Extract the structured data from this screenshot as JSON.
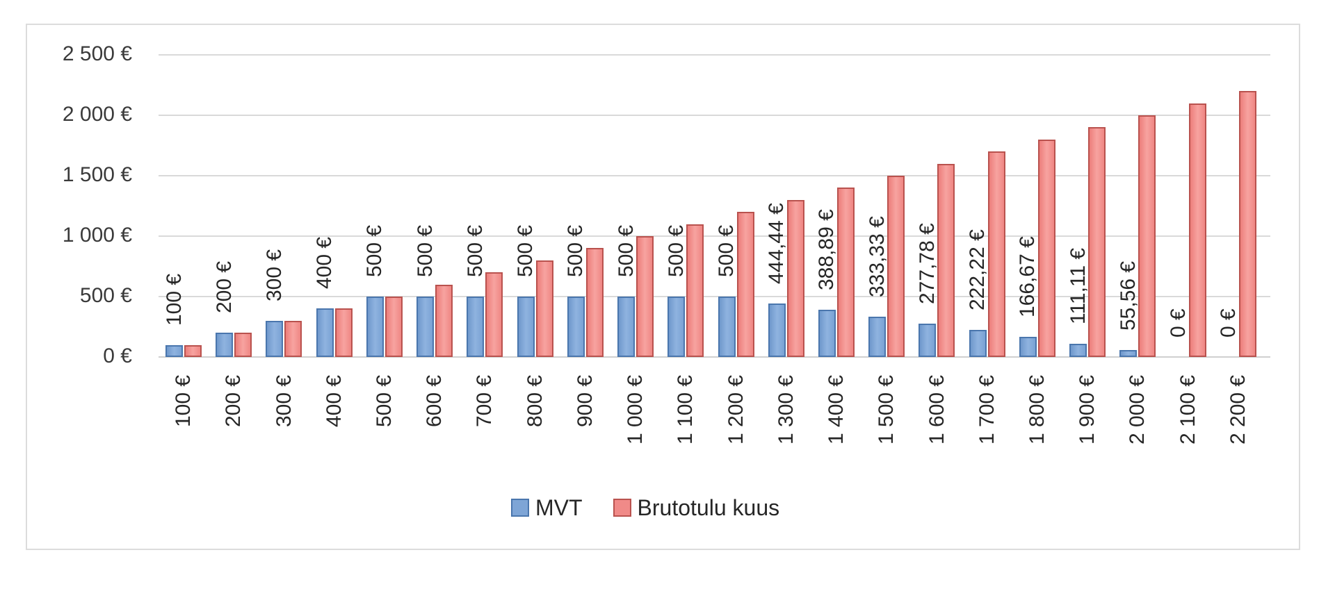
{
  "chart_data": {
    "type": "bar",
    "title": "",
    "xlabel": "",
    "ylabel": "",
    "ylim": [
      0,
      2500
    ],
    "y_ticks": [
      "0 €",
      "500 €",
      "1 000 €",
      "1 500 €",
      "2 000 €",
      "2 500 €"
    ],
    "y_tick_values": [
      0,
      500,
      1000,
      1500,
      2000,
      2500
    ],
    "grid": true,
    "legend_position": "bottom",
    "categories": [
      "100 €",
      "200 €",
      "300 €",
      "400 €",
      "500 €",
      "600 €",
      "700 €",
      "800 €",
      "900 €",
      "1 000 €",
      "1 100 €",
      "1 200 €",
      "1 300 €",
      "1 400 €",
      "1 500 €",
      "1 600 €",
      "1 700 €",
      "1 800 €",
      "1 900 €",
      "2 000 €",
      "2 100 €",
      "2 200 €"
    ],
    "series": [
      {
        "name": "MVT",
        "color": "#7ea5d6",
        "values": [
          100,
          200,
          300,
          400,
          500,
          500,
          500,
          500,
          500,
          500,
          500,
          500,
          444.44,
          388.89,
          333.33,
          277.78,
          222.22,
          166.67,
          111.11,
          55.56,
          0,
          0
        ],
        "data_labels": [
          "100 €",
          "200 €",
          "300 €",
          "400 €",
          "500 €",
          "500 €",
          "500 €",
          "500 €",
          "500 €",
          "500 €",
          "500 €",
          "500 €",
          "444,44 €",
          "388,89 €",
          "333,33 €",
          "277,78 €",
          "222,22 €",
          "166,67 €",
          "111,11 €",
          "55,56 €",
          "0 €",
          "0 €"
        ]
      },
      {
        "name": "Brutotulu kuus",
        "color": "#f08a88",
        "values": [
          100,
          200,
          300,
          400,
          500,
          600,
          700,
          800,
          900,
          1000,
          1100,
          1200,
          1300,
          1400,
          1500,
          1600,
          1700,
          1800,
          1900,
          2000,
          2100,
          2200
        ]
      }
    ]
  },
  "legend": {
    "items": [
      {
        "label": "MVT",
        "color": "#7ea5d6"
      },
      {
        "label": "Brutotulu kuus",
        "color": "#f08a88"
      }
    ]
  }
}
